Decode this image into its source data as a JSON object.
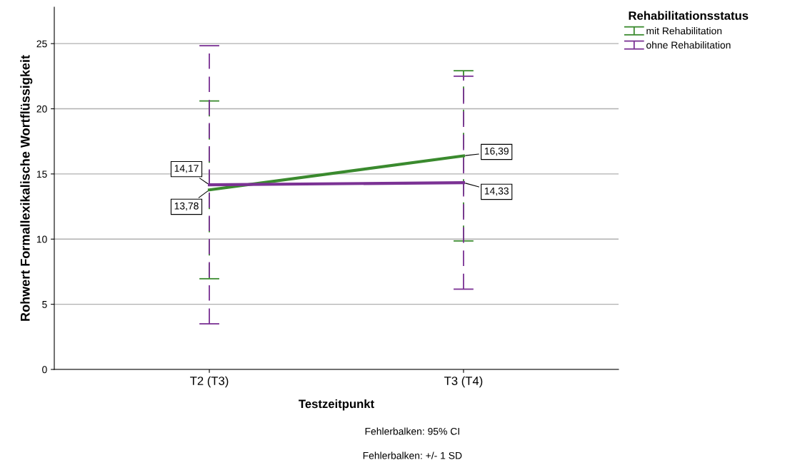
{
  "chart_data": {
    "type": "line",
    "xlabel": "Testzeitpunkt",
    "ylabel": "Rohwert Formallexikalische Wortflüssigkeit",
    "legend_title": "Rehabilitationsstatus",
    "categories": [
      "T2 (T3)",
      "T3 (T4)"
    ],
    "series": [
      {
        "name": "mit Rehabilitation",
        "color": "#3a8a2e",
        "values": [
          13.78,
          16.39
        ],
        "errors": [
          6.82,
          6.53
        ],
        "value_labels": [
          "13,78",
          "16,39"
        ]
      },
      {
        "name": "ohne Rehabilitation",
        "color": "#7b3294",
        "values": [
          14.17,
          14.33
        ],
        "errors": [
          10.67,
          8.17
        ],
        "value_labels": [
          "14,17",
          "14,33"
        ]
      }
    ],
    "ylim": [
      0,
      27.8
    ],
    "yticks": [
      0,
      5,
      10,
      15,
      20,
      25
    ],
    "grid": "y",
    "legend": "top right",
    "marker": "none",
    "line_style": "solid",
    "annotations": [
      "Fehlerbalken: 95% CI",
      "Fehlerbalken: +/- 1 SD"
    ]
  }
}
